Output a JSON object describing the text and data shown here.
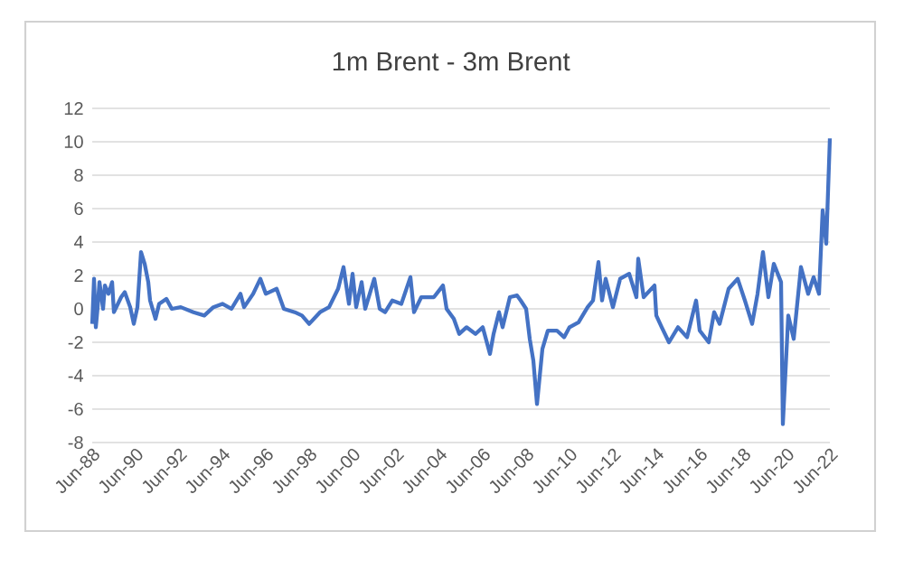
{
  "chart_data": {
    "type": "line",
    "title": "1m Brent - 3m Brent",
    "x": [
      "1988-06",
      "1988-07",
      "1988-08",
      "1988-09",
      "1988-10",
      "1988-12",
      "1989-01",
      "1989-03",
      "1989-05",
      "1989-06",
      "1989-10",
      "1989-12",
      "1990-03",
      "1990-05",
      "1990-07",
      "1990-09",
      "1990-11",
      "1991-01",
      "1991-02",
      "1991-05",
      "1991-07",
      "1991-11",
      "1992-02",
      "1992-07",
      "1993-02",
      "1993-08",
      "1994-01",
      "1994-06",
      "1994-11",
      "1995-04",
      "1995-06",
      "1995-11",
      "1996-03",
      "1996-06",
      "1996-12",
      "1997-04",
      "1997-10",
      "1998-02",
      "1998-06",
      "1998-12",
      "1999-05",
      "1999-10",
      "2000-01",
      "2000-04",
      "2000-06",
      "2000-08",
      "2000-11",
      "2001-01",
      "2001-06",
      "2001-09",
      "2001-12",
      "2002-04",
      "2002-09",
      "2003-02",
      "2003-04",
      "2003-08",
      "2004-03",
      "2004-08",
      "2004-10",
      "2005-02",
      "2005-05",
      "2005-09",
      "2006-02",
      "2006-06",
      "2006-10",
      "2006-12",
      "2007-03",
      "2007-05",
      "2007-09",
      "2008-01",
      "2008-03",
      "2008-06",
      "2008-08",
      "2008-10",
      "2008-12",
      "2009-03",
      "2009-06",
      "2009-11",
      "2010-03",
      "2010-06",
      "2010-11",
      "2011-04",
      "2011-07",
      "2011-10",
      "2011-12",
      "2012-02",
      "2012-06",
      "2012-10",
      "2013-03",
      "2013-07",
      "2013-08",
      "2013-11",
      "2014-05",
      "2014-06",
      "2014-09",
      "2015-01",
      "2015-06",
      "2015-11",
      "2016-04",
      "2016-06",
      "2016-11",
      "2017-02",
      "2017-05",
      "2017-10",
      "2018-03",
      "2018-07",
      "2018-11",
      "2019-02",
      "2019-05",
      "2019-08",
      "2019-11",
      "2020-03",
      "2020-04",
      "2020-07",
      "2020-10",
      "2021-02",
      "2021-06",
      "2021-09",
      "2021-12",
      "2022-02",
      "2022-04",
      "2022-06"
    ],
    "series": [
      {
        "color": "#4472c4",
        "values": [
          -0.9,
          1.8,
          -1.1,
          0.1,
          1.6,
          0.0,
          1.4,
          0.9,
          1.6,
          -0.2,
          0.7,
          1.0,
          0.1,
          -0.9,
          0.1,
          3.4,
          2.7,
          1.6,
          0.5,
          -0.6,
          0.3,
          0.6,
          0.0,
          0.1,
          -0.2,
          -0.4,
          0.1,
          0.3,
          0.0,
          0.9,
          0.1,
          0.9,
          1.8,
          0.9,
          1.2,
          0.0,
          -0.2,
          -0.4,
          -0.9,
          -0.2,
          0.1,
          1.2,
          2.5,
          0.3,
          2.1,
          0.1,
          1.6,
          0.0,
          1.8,
          0.0,
          -0.2,
          0.5,
          0.3,
          1.9,
          -0.2,
          0.7,
          0.7,
          1.4,
          0.0,
          -0.6,
          -1.5,
          -1.1,
          -1.5,
          -1.1,
          -2.7,
          -1.5,
          -0.2,
          -1.1,
          0.7,
          0.8,
          0.5,
          0.0,
          -1.8,
          -3.1,
          -5.7,
          -2.4,
          -1.3,
          -1.3,
          -1.7,
          -1.1,
          -0.8,
          0.1,
          0.5,
          2.8,
          0.5,
          1.8,
          0.1,
          1.8,
          2.1,
          0.7,
          3.0,
          0.7,
          1.4,
          -0.4,
          -1.1,
          -2.0,
          -1.1,
          -1.7,
          0.5,
          -1.3,
          -2.0,
          -0.2,
          -0.9,
          1.2,
          1.8,
          0.5,
          -0.9,
          0.9,
          3.4,
          0.7,
          2.7,
          1.6,
          -6.9,
          -0.4,
          -1.8,
          2.5,
          0.9,
          1.9,
          0.9,
          5.9,
          3.9,
          10.2
        ]
      }
    ],
    "xlim": [
      "1988-06",
      "2022-06"
    ],
    "xticks": [
      {
        "value": "1988-06",
        "label": "Jun-88"
      },
      {
        "value": "1990-06",
        "label": "Jun-90"
      },
      {
        "value": "1992-06",
        "label": "Jun-92"
      },
      {
        "value": "1994-06",
        "label": "Jun-94"
      },
      {
        "value": "1996-06",
        "label": "Jun-96"
      },
      {
        "value": "1998-06",
        "label": "Jun-98"
      },
      {
        "value": "2000-06",
        "label": "Jun-00"
      },
      {
        "value": "2002-06",
        "label": "Jun-02"
      },
      {
        "value": "2004-06",
        "label": "Jun-04"
      },
      {
        "value": "2006-06",
        "label": "Jun-06"
      },
      {
        "value": "2008-06",
        "label": "Jun-08"
      },
      {
        "value": "2010-06",
        "label": "Jun-10"
      },
      {
        "value": "2012-06",
        "label": "Jun-12"
      },
      {
        "value": "2014-06",
        "label": "Jun-14"
      },
      {
        "value": "2016-06",
        "label": "Jun-16"
      },
      {
        "value": "2018-06",
        "label": "Jun-18"
      },
      {
        "value": "2020-06",
        "label": "Jun-20"
      },
      {
        "value": "2022-06",
        "label": "Jun-22"
      }
    ],
    "ylim": [
      -8,
      12
    ],
    "yticks": [
      -8,
      -6,
      -4,
      -2,
      0,
      2,
      4,
      6,
      8,
      10,
      12
    ],
    "grid": "y",
    "line_style": "solid"
  }
}
